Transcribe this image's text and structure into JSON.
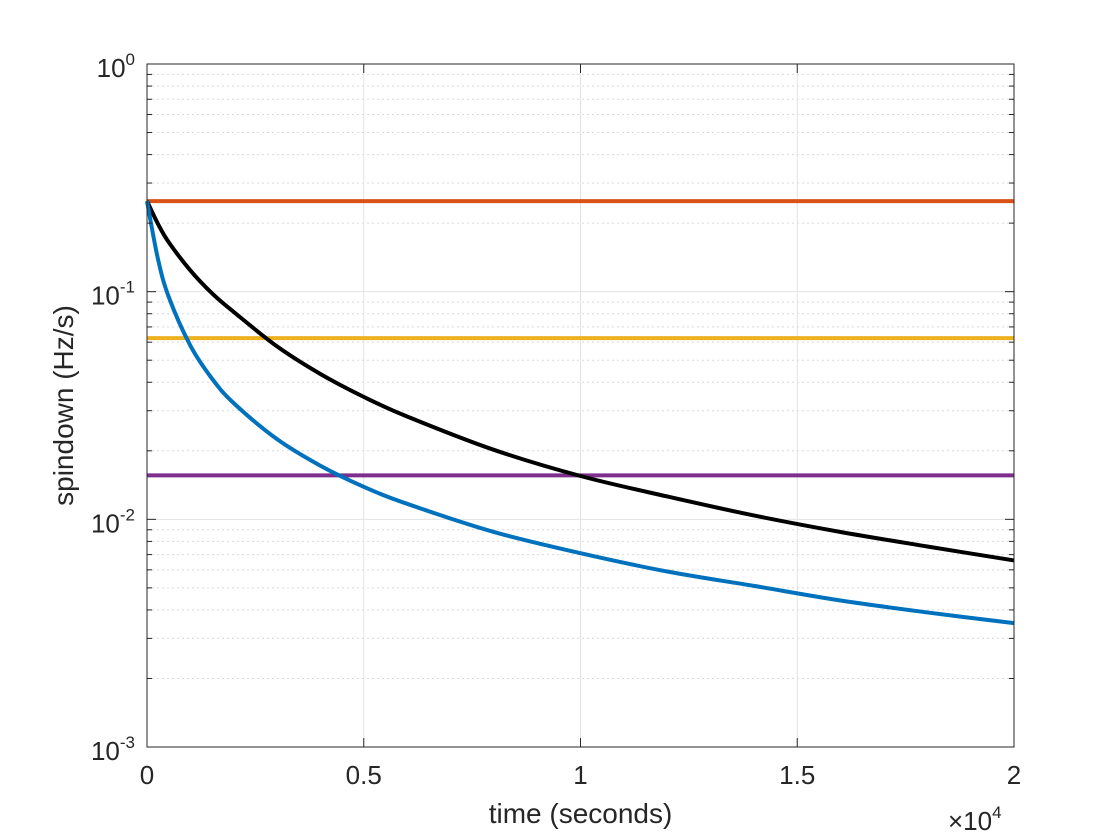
{
  "chart_data": {
    "type": "line",
    "xlabel": "time (seconds)",
    "ylabel": "spindown (Hz/s)",
    "xlim": [
      0,
      20000
    ],
    "ylim": [
      0.001,
      1
    ],
    "y_scale": "log",
    "grid": "on",
    "minor_grid_y": "on",
    "x_multiplier": {
      "prefix": "×10",
      "exponent": "4"
    },
    "x_ticks": [
      {
        "value": 0,
        "label": "0"
      },
      {
        "value": 5000,
        "label": "0.5"
      },
      {
        "value": 10000,
        "label": "1"
      },
      {
        "value": 15000,
        "label": "1.5"
      },
      {
        "value": 20000,
        "label": "2"
      }
    ],
    "y_ticks": [
      {
        "value": 0.001,
        "base": "10",
        "exp": "-3"
      },
      {
        "value": 0.01,
        "base": "10",
        "exp": "-2"
      },
      {
        "value": 0.1,
        "base": "10",
        "exp": "-1"
      },
      {
        "value": 1,
        "base": "10",
        "exp": "0"
      }
    ],
    "series": [
      {
        "color": "#d95319",
        "x": [
          0,
          20000
        ],
        "y": [
          0.25,
          0.25
        ]
      },
      {
        "color": "#edb120",
        "x": [
          0,
          20000
        ],
        "y": [
          0.0625,
          0.0625
        ]
      },
      {
        "color": "#7e2f8e",
        "x": [
          0,
          20000
        ],
        "y": [
          0.0156,
          0.0156
        ]
      },
      {
        "color": "#000000",
        "x": [
          0,
          250,
          500,
          1000,
          1500,
          2000,
          3000,
          4000,
          5000,
          6000,
          8000,
          10000,
          12000,
          14000,
          16000,
          18000,
          20000
        ],
        "y": [
          0.25,
          0.199,
          0.165,
          0.124,
          0.0984,
          0.0815,
          0.0575,
          0.0435,
          0.0345,
          0.0283,
          0.0202,
          0.0155,
          0.0126,
          0.0104,
          0.0088,
          0.0076,
          0.0066
        ]
      },
      {
        "color": "#0072bd",
        "x": [
          0,
          250,
          500,
          1000,
          1500,
          2000,
          3000,
          4000,
          5000,
          6000,
          8000,
          10000,
          12000,
          14000,
          16000,
          18000,
          20000
        ],
        "y": [
          0.25,
          0.14,
          0.095,
          0.058,
          0.0415,
          0.0324,
          0.0225,
          0.0172,
          0.0139,
          0.0117,
          0.0088,
          0.0071,
          0.0059,
          0.0051,
          0.0044,
          0.0039,
          0.0035
        ]
      }
    ]
  }
}
